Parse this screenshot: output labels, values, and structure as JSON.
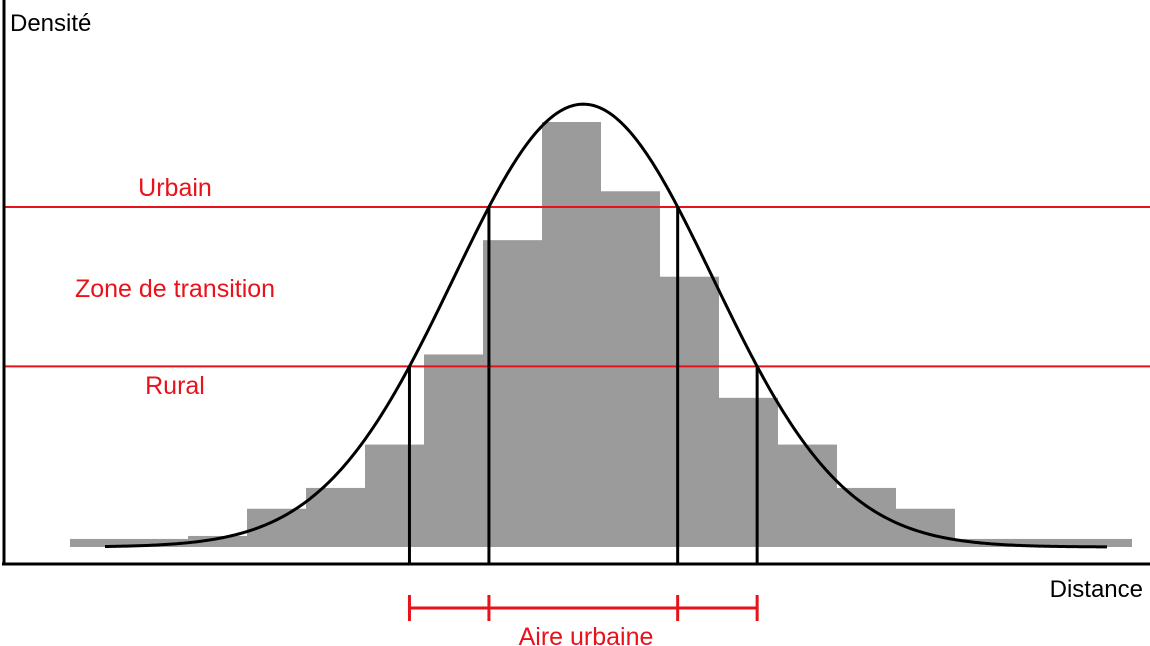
{
  "chart_data": {
    "type": "bar",
    "xlabel": "Distance",
    "ylabel": "Densité",
    "ylim": [
      0,
      100
    ],
    "bins": 18,
    "values": [
      1.9,
      1.9,
      2.6,
      9.0,
      13.9,
      24.1,
      45.3,
      72.2,
      100,
      83.7,
      63.6,
      35.1,
      24.1,
      13.9,
      9.0,
      1.9,
      1.9,
      1.9
    ],
    "curve": {
      "name": "",
      "type": "gaussian",
      "peak": 104.2,
      "center_bin": 8.7,
      "sigma_bins": 2.2
    },
    "thresholds": [
      {
        "label": "Urbain",
        "y": 80
      },
      {
        "label": "Rural",
        "y": 42.5
      }
    ],
    "zones": {
      "middle_label": "Zone de transition"
    },
    "range_marker": {
      "label": "Aire urbaine"
    },
    "colors": {
      "bars": "#9b9b9b",
      "curve": "#000000",
      "thresholds": "#e8121b",
      "marker": "#e8121b"
    }
  },
  "labels": {
    "ylabel": "Densité",
    "xlabel": "Distance",
    "urbain": "Urbain",
    "transition": "Zone de transition",
    "rural": "Rural",
    "aire": "Aire urbaine"
  }
}
